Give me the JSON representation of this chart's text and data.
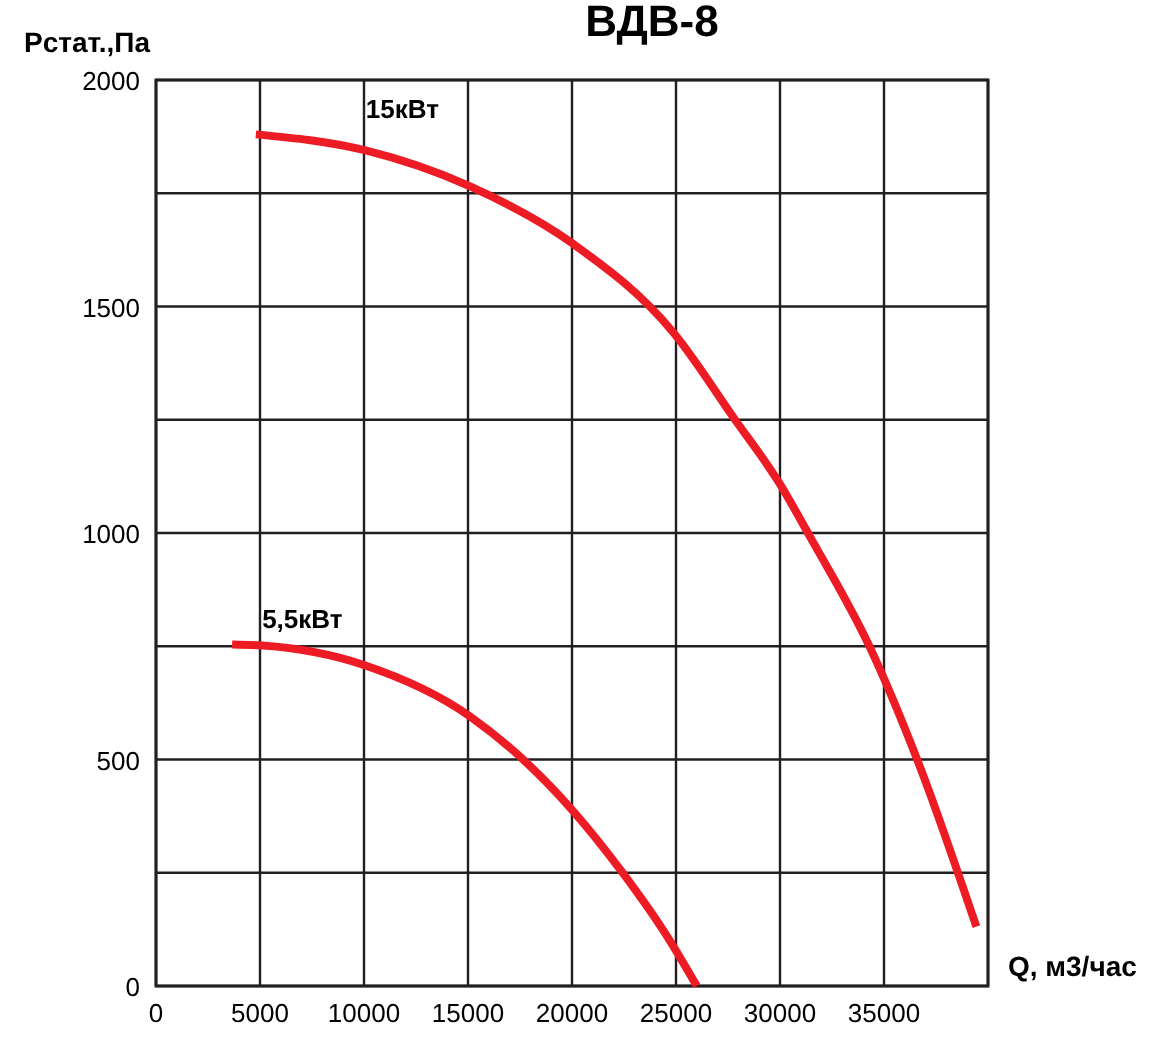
{
  "chart_data": {
    "type": "line",
    "title": "ВДВ-8",
    "xlabel": "Q, м3/час",
    "ylabel": "Рстат.,Па",
    "xlim": [
      0,
      40000
    ],
    "ylim": [
      0,
      2000
    ],
    "xticks": [
      0,
      5000,
      10000,
      15000,
      20000,
      25000,
      30000,
      35000,
      {
        "value": 40000,
        "label": null
      }
    ],
    "yticks": [
      0,
      {
        "value": 250,
        "label": null
      },
      500,
      {
        "value": 750,
        "label": null
      },
      1000,
      {
        "value": 1250,
        "label": null
      },
      1500,
      {
        "value": 1750,
        "label": null
      },
      2000
    ],
    "grid": true,
    "marker": "none",
    "line_style": "solid",
    "series": [
      {
        "name": "15кВт",
        "color": "#ed1c24",
        "x": [
          4800,
          10030,
          15100,
          20000,
          24900,
          27840,
          29970,
          31440,
          34380,
          36670,
          39440
        ],
        "values": [
          1880,
          1845,
          1765,
          1640,
          1441,
          1250,
          1110,
          992,
          742,
          491,
          131
        ]
      },
      {
        "name": "5,5кВт",
        "color": "#ed1c24",
        "x": [
          3660,
          4970,
          10030,
          15100,
          20000,
          22450,
          24580,
          26000
        ],
        "values": [
          754,
          752,
          708,
          595,
          389,
          249,
          109,
          0
        ]
      }
    ]
  }
}
